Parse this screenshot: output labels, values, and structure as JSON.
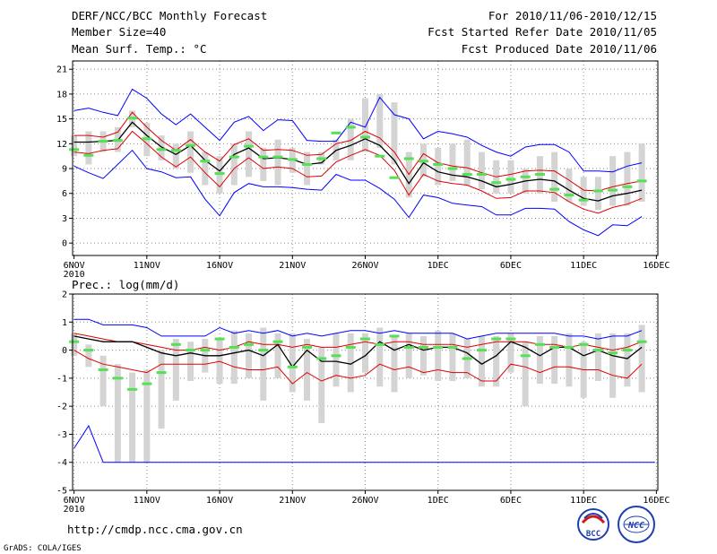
{
  "header": {
    "title": "DERF/NCC/BCC Monthly Forecast",
    "members": "Member Size=40",
    "variable": "Mean Surf. Temp.: °C",
    "period": "For 2010/11/06-2010/12/15",
    "start_date": "Fcst Started Refer Date 2010/11/05",
    "produced_date": "Fcst Produced Date 2010/11/06"
  },
  "footer": {
    "url": "http://cmdp.ncc.cma.gov.cn",
    "credit": "GrADS: COLA/IGES",
    "logo_bcc": "BCC",
    "logo_ncc": "NCC"
  },
  "colors": {
    "envelope": "#0000ff",
    "spread": "#e00000",
    "mean": "#000000",
    "box": "#d4d4d4",
    "marker": "#55e055",
    "grid": "#888888",
    "lower_bound": "#1a1a8c"
  },
  "chart_data": [
    {
      "type": "line",
      "title": "Mean Surf. Temp.: °C",
      "x_labels": [
        {
          "day": 1,
          "label": "6NOV",
          "sub": "2010"
        },
        {
          "day": 6,
          "label": "11NOV"
        },
        {
          "day": 11,
          "label": "16NOV"
        },
        {
          "day": 16,
          "label": "21NOV"
        },
        {
          "day": 21,
          "label": "26NOV"
        },
        {
          "day": 26,
          "label": "1DEC"
        },
        {
          "day": 31,
          "label": "6DEC"
        },
        {
          "day": 36,
          "label": "11DEC"
        },
        {
          "day": 41,
          "label": "16DEC"
        }
      ],
      "xlim": [
        0.9,
        41.1
      ],
      "ylim": [
        -1.5,
        22
      ],
      "yticks": [
        0,
        3,
        6,
        9,
        12,
        15,
        18,
        21
      ],
      "days": [
        1,
        2,
        3,
        4,
        5,
        6,
        7,
        8,
        9,
        10,
        11,
        12,
        13,
        14,
        15,
        16,
        17,
        18,
        19,
        20,
        21,
        22,
        23,
        24,
        25,
        26,
        27,
        28,
        29,
        30,
        31,
        32,
        33,
        34,
        35,
        36,
        37,
        38,
        39,
        40
      ],
      "series": [
        {
          "name": "max",
          "color": "blue",
          "values": [
            16.0,
            16.3,
            15.8,
            15.4,
            18.6,
            17.5,
            15.6,
            14.3,
            15.6,
            14.0,
            12.4,
            14.6,
            15.3,
            13.6,
            14.9,
            14.8,
            12.4,
            12.3,
            12.3,
            14.6,
            14.0,
            17.6,
            15.5,
            15.0,
            12.6,
            13.5,
            13.2,
            12.8,
            11.8,
            11.0,
            10.5,
            11.6,
            11.9,
            11.9,
            11.0,
            8.7,
            8.7,
            8.6,
            9.3,
            9.7
          ]
        },
        {
          "name": "upper",
          "color": "red",
          "values": [
            13.0,
            13.0,
            12.8,
            13.4,
            15.8,
            14.0,
            12.4,
            11.2,
            12.5,
            11.0,
            9.9,
            11.9,
            12.6,
            11.2,
            11.3,
            11.2,
            10.6,
            10.7,
            12.0,
            12.4,
            13.5,
            12.7,
            11.0,
            8.3,
            10.8,
            9.7,
            9.3,
            9.1,
            8.5,
            8.0,
            8.3,
            8.7,
            8.8,
            8.7,
            7.6,
            6.4,
            6.3,
            6.8,
            7.2,
            7.5
          ]
        },
        {
          "name": "mean",
          "color": "black",
          "values": [
            12.2,
            12.2,
            12.3,
            12.4,
            14.6,
            13.0,
            11.6,
            10.7,
            11.8,
            10.0,
            8.7,
            10.7,
            11.5,
            10.2,
            10.3,
            10.1,
            9.5,
            9.7,
            11.2,
            11.8,
            12.6,
            11.8,
            10.0,
            7.2,
            9.7,
            8.6,
            8.2,
            8.0,
            7.5,
            6.8,
            7.1,
            7.5,
            7.7,
            7.5,
            6.4,
            5.4,
            5.1,
            5.7,
            6.0,
            6.4
          ]
        },
        {
          "name": "lower",
          "color": "red",
          "values": [
            11.0,
            10.8,
            11.2,
            11.4,
            13.5,
            12.0,
            10.4,
            9.2,
            10.4,
            8.5,
            6.8,
            9.0,
            10.3,
            9.0,
            9.2,
            9.0,
            8.0,
            8.1,
            9.8,
            10.6,
            11.3,
            10.6,
            8.8,
            5.8,
            8.3,
            7.5,
            7.2,
            7.0,
            6.3,
            5.4,
            5.5,
            6.3,
            6.3,
            6.1,
            5.0,
            4.1,
            3.6,
            4.3,
            4.7,
            5.4
          ]
        },
        {
          "name": "min",
          "color": "blue",
          "values": [
            9.3,
            8.5,
            7.8,
            9.5,
            11.2,
            9.0,
            8.6,
            7.9,
            8.0,
            5.3,
            3.3,
            6.1,
            7.2,
            6.8,
            6.8,
            6.7,
            6.5,
            6.4,
            8.3,
            7.6,
            7.6,
            6.6,
            5.3,
            3.1,
            5.8,
            5.5,
            4.8,
            4.6,
            4.4,
            3.4,
            3.4,
            4.2,
            4.2,
            4.1,
            2.6,
            1.6,
            0.9,
            2.2,
            2.1,
            3.2
          ]
        }
      ],
      "boxes": [
        [
          10.5,
          13.0
        ],
        [
          9.5,
          13.5
        ],
        [
          11.0,
          13.5
        ],
        [
          11.0,
          14.0
        ],
        [
          14.0,
          16.0
        ],
        [
          10.5,
          14.5
        ],
        [
          10.0,
          13.0
        ],
        [
          9.0,
          12.0
        ],
        [
          8.5,
          13.5
        ],
        [
          7.0,
          11.0
        ],
        [
          6.0,
          10.5
        ],
        [
          7.0,
          12.0
        ],
        [
          8.0,
          13.5
        ],
        [
          7.5,
          11.5
        ],
        [
          7.0,
          12.5
        ],
        [
          8.5,
          11.5
        ],
        [
          7.0,
          11.0
        ],
        [
          9.5,
          11.0
        ],
        [
          10.0,
          12.5
        ],
        [
          10.0,
          15.0
        ],
        [
          11.0,
          17.5
        ],
        [
          11.5,
          18.0
        ],
        [
          9.5,
          17.0
        ],
        [
          5.5,
          11.0
        ],
        [
          8.0,
          12.0
        ],
        [
          7.0,
          11.5
        ],
        [
          7.5,
          12.0
        ],
        [
          7.0,
          12.5
        ],
        [
          6.5,
          11.0
        ],
        [
          6.0,
          10.0
        ],
        [
          6.0,
          10.0
        ],
        [
          6.0,
          9.0
        ],
        [
          6.0,
          10.5
        ],
        [
          5.0,
          11.0
        ],
        [
          5.0,
          9.0
        ],
        [
          4.5,
          8.0
        ],
        [
          4.0,
          8.0
        ],
        [
          4.5,
          10.5
        ],
        [
          4.5,
          11.0
        ],
        [
          5.0,
          12.0
        ]
      ],
      "markers": [
        11.3,
        10.6,
        12.3,
        12.4,
        15.1,
        12.6,
        11.3,
        11.2,
        11.8,
        9.9,
        8.4,
        10.4,
        11.7,
        10.4,
        10.4,
        10.1,
        9.5,
        10.2,
        13.3,
        14.0,
        12.8,
        10.5,
        7.9,
        10.2,
        9.9,
        9.5,
        9.0,
        8.3,
        8.3,
        7.3,
        7.7,
        8.0,
        8.3,
        6.5,
        5.8,
        5.2,
        6.3,
        6.4,
        6.8,
        7.5
      ]
    },
    {
      "type": "line",
      "title": "Prec.: log(mm/d)",
      "x_labels": [
        {
          "day": 1,
          "label": "6NOV",
          "sub": "2010"
        },
        {
          "day": 6,
          "label": "11NOV"
        },
        {
          "day": 11,
          "label": "16NOV"
        },
        {
          "day": 16,
          "label": "21NOV"
        },
        {
          "day": 21,
          "label": "26NOV"
        },
        {
          "day": 26,
          "label": "1DEC"
        },
        {
          "day": 31,
          "label": "6DEC"
        },
        {
          "day": 36,
          "label": "11DEC"
        },
        {
          "day": 41,
          "label": "16DEC"
        }
      ],
      "xlim": [
        0.9,
        41.1
      ],
      "ylim": [
        -5,
        2
      ],
      "yticks": [
        -5,
        -4,
        -3,
        -2,
        -1,
        0,
        1,
        2
      ],
      "days": [
        1,
        2,
        3,
        4,
        5,
        6,
        7,
        8,
        9,
        10,
        11,
        12,
        13,
        14,
        15,
        16,
        17,
        18,
        19,
        20,
        21,
        22,
        23,
        24,
        25,
        26,
        27,
        28,
        29,
        30,
        31,
        32,
        33,
        34,
        35,
        36,
        37,
        38,
        39,
        40
      ],
      "series": [
        {
          "name": "max",
          "color": "blue",
          "values": [
            1.1,
            1.1,
            0.9,
            0.9,
            0.9,
            0.8,
            0.5,
            0.5,
            0.5,
            0.5,
            0.8,
            0.6,
            0.7,
            0.6,
            0.7,
            0.5,
            0.6,
            0.5,
            0.6,
            0.7,
            0.7,
            0.6,
            0.7,
            0.6,
            0.6,
            0.6,
            0.6,
            0.4,
            0.5,
            0.6,
            0.6,
            0.6,
            0.6,
            0.6,
            0.5,
            0.5,
            0.4,
            0.5,
            0.5,
            0.7
          ]
        },
        {
          "name": "upper",
          "color": "red",
          "values": [
            0.6,
            0.5,
            0.4,
            0.3,
            0.3,
            0.2,
            0.1,
            0.0,
            0.0,
            0.1,
            0.0,
            0.1,
            0.3,
            0.2,
            0.2,
            0.1,
            0.2,
            0.1,
            0.1,
            0.2,
            0.3,
            0.2,
            0.3,
            0.3,
            0.2,
            0.2,
            0.2,
            0.1,
            0.2,
            0.3,
            0.3,
            0.3,
            0.2,
            0.2,
            0.1,
            0.2,
            0.1,
            0.0,
            0.1,
            0.3
          ]
        },
        {
          "name": "mean",
          "color": "black",
          "values": [
            0.5,
            0.4,
            0.3,
            0.3,
            0.3,
            0.1,
            -0.1,
            -0.2,
            -0.1,
            -0.2,
            -0.2,
            -0.1,
            0.0,
            -0.2,
            0.2,
            -0.6,
            0.0,
            -0.4,
            -0.4,
            -0.5,
            -0.2,
            0.3,
            0.0,
            0.2,
            0.0,
            0.1,
            0.1,
            -0.1,
            -0.5,
            -0.2,
            0.3,
            0.1,
            -0.2,
            0.1,
            0.1,
            -0.2,
            0.0,
            -0.2,
            -0.3,
            0.1
          ]
        },
        {
          "name": "lower",
          "color": "red",
          "values": [
            0.0,
            -0.3,
            -0.5,
            -0.6,
            -0.7,
            -0.8,
            -0.5,
            -0.5,
            -0.5,
            -0.5,
            -0.4,
            -0.6,
            -0.7,
            -0.7,
            -0.6,
            -1.2,
            -0.8,
            -1.1,
            -0.9,
            -1.0,
            -0.9,
            -0.5,
            -0.7,
            -0.6,
            -0.8,
            -0.7,
            -0.8,
            -0.8,
            -1.1,
            -1.1,
            -0.5,
            -0.6,
            -0.8,
            -0.6,
            -0.6,
            -0.7,
            -0.7,
            -0.9,
            -1.0,
            -0.5
          ]
        },
        {
          "name": "min",
          "color": "blue",
          "values": [
            -3.5,
            -2.7,
            -4.0,
            -4.0,
            -4.0,
            -4.0,
            -4.0,
            -4.0,
            -4.0,
            -4.0,
            -4.0,
            -4.0,
            -4.0,
            -4.0,
            -4.0,
            -4.0,
            -4.0,
            -4.0,
            -4.0,
            -4.0,
            -4.0,
            -4.0,
            -4.0,
            -4.0,
            -4.0,
            -4.0,
            -4.0,
            -4.0,
            -4.0,
            -4.0,
            -4.0,
            -4.0,
            -4.0,
            -4.0,
            -4.0,
            -4.0,
            -4.0,
            -4.0,
            -4.0,
            -4.0
          ]
        }
      ],
      "boxes": [
        [
          -0.2,
          0.6
        ],
        [
          -0.6,
          0.2
        ],
        [
          -2.0,
          -0.2
        ],
        [
          -4.0,
          -0.5
        ],
        [
          -4.0,
          -0.8
        ],
        [
          -4.0,
          -0.7
        ],
        [
          -2.8,
          0.0
        ],
        [
          -1.8,
          0.4
        ],
        [
          -1.1,
          0.3
        ],
        [
          -0.8,
          0.4
        ],
        [
          -1.2,
          0.4
        ],
        [
          -1.2,
          0.7
        ],
        [
          -1.0,
          0.6
        ],
        [
          -1.8,
          0.8
        ],
        [
          -1.0,
          0.6
        ],
        [
          -1.5,
          0.6
        ],
        [
          -1.8,
          0.4
        ],
        [
          -2.6,
          0.1
        ],
        [
          -1.3,
          0.6
        ],
        [
          -1.5,
          0.6
        ],
        [
          -0.8,
          0.6
        ],
        [
          -1.3,
          0.8
        ],
        [
          -1.5,
          0.5
        ],
        [
          -1.0,
          0.6
        ],
        [
          -0.9,
          0.5
        ],
        [
          -1.1,
          0.7
        ],
        [
          -1.1,
          0.6
        ],
        [
          -1.0,
          0.4
        ],
        [
          -1.3,
          0.5
        ],
        [
          -1.3,
          0.5
        ],
        [
          -0.8,
          0.6
        ],
        [
          -2.0,
          0.3
        ],
        [
          -1.2,
          0.5
        ],
        [
          -1.2,
          0.5
        ],
        [
          -1.3,
          0.6
        ],
        [
          -1.7,
          0.3
        ],
        [
          -1.1,
          0.6
        ],
        [
          -1.7,
          0.6
        ],
        [
          -1.3,
          0.6
        ],
        [
          -1.5,
          0.9
        ]
      ],
      "markers": [
        0.3,
        0.0,
        -0.7,
        -1.0,
        -1.4,
        -1.2,
        -0.8,
        0.2,
        0.0,
        0.0,
        0.4,
        0.1,
        0.2,
        0.0,
        0.3,
        -0.6,
        0.1,
        -0.3,
        -0.2,
        0.1,
        0.4,
        0.2,
        0.5,
        0.1,
        0.1,
        0.1,
        0.1,
        -0.3,
        0.0,
        0.4,
        0.4,
        -0.2,
        0.2,
        0.1,
        0.1,
        0.2,
        0.0,
        -0.1,
        0.0,
        0.3
      ]
    }
  ]
}
